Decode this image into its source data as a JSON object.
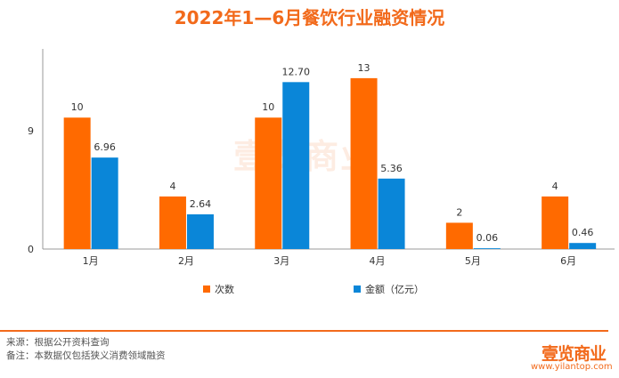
{
  "chart_data": {
    "type": "bar",
    "title": "2022年1—6月餐饮行业融资情况",
    "categories": [
      "1月",
      "2月",
      "3月",
      "4月",
      "5月",
      "6月"
    ],
    "series": [
      {
        "name": "次数",
        "color": "#ff6a00",
        "values": [
          10,
          4,
          10,
          13,
          2,
          4
        ],
        "labels": [
          "10",
          "4",
          "10",
          "13",
          "2",
          "4"
        ]
      },
      {
        "name": "金额（亿元）",
        "color": "#0a86d8",
        "values": [
          6.96,
          2.64,
          12.7,
          5.36,
          0.06,
          0.46
        ],
        "labels": [
          "6.96",
          "2.64",
          "12.70",
          "5.36",
          "0.06",
          "0.46"
        ]
      }
    ],
    "yticks": [
      "0",
      "9"
    ],
    "ylim": [
      0,
      15
    ],
    "legend": "bottom",
    "grid": false
  },
  "footer": {
    "source": "来源：根据公开资料查询",
    "note": "备注：本数据仅包括狭义消费领域融资",
    "logo": "壹览商业",
    "url": "www.yilantop.com"
  },
  "watermark": "壹览商业"
}
